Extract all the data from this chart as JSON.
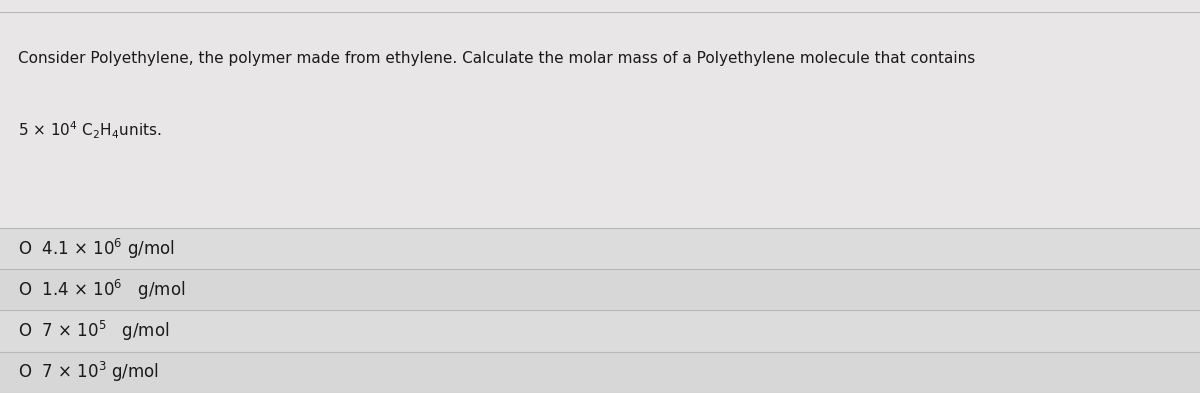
{
  "bg_color": "#e8e6e6",
  "question_area_color": "#e8e6e6",
  "option_area_color": "#dddcdc",
  "divider_color": "#b8b6b6",
  "text_color": "#1a1a1a",
  "question_line1": "Consider Polyethylene, the polymer made from ethylene. Calculate the molar mass of a Polyethylene molecule that contains",
  "question_line2_prefix": "5 × 10",
  "question_line2_sup": "4",
  "question_line2_suffix": " C",
  "question_line2_sub1": "2",
  "question_line2_H": "H",
  "question_line2_sub2": "4",
  "question_line2_end": "units.",
  "font_size_q": 11.0,
  "font_size_opt": 12.0,
  "options_circle": "O",
  "options": [
    {
      "prefix": "4.1 × 10",
      "sup": "6",
      "suffix": " g/mol",
      "gap": ""
    },
    {
      "prefix": "1.4 × 10",
      "sup": "6",
      "suffix": "  g/mol",
      "gap": "  "
    },
    {
      "prefix": "7 × 10",
      "sup": "5",
      "suffix": "  g/mol",
      "gap": " "
    },
    {
      "prefix": "7 × 10",
      "sup": "3",
      "suffix": " g/mol",
      "gap": ""
    }
  ]
}
